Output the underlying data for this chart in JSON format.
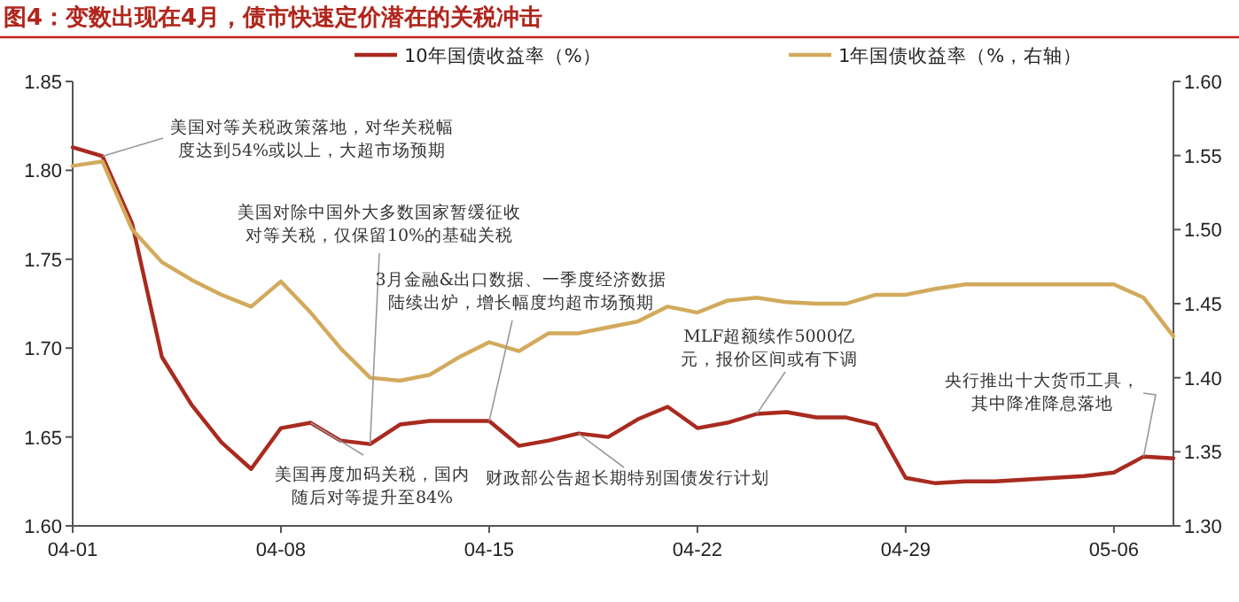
{
  "chart_data": {
    "type": "line",
    "title": "图4：变数出现在4月，债市快速定价潜在的关税冲击",
    "x": [
      "--04-01",
      "--04-02",
      "--04-03",
      "--04-04",
      "--04-05",
      "--04-06",
      "--04-07",
      "--04-08",
      "--04-09",
      "--04-10",
      "--04-11",
      "--04-12",
      "--04-13",
      "--04-14",
      "--04-15",
      "--04-16",
      "--04-17",
      "--04-18",
      "--04-19",
      "--04-20",
      "--04-21",
      "--04-22",
      "--04-23",
      "--04-24",
      "--04-25",
      "--04-26",
      "--04-27",
      "--04-28",
      "--04-29",
      "--04-30",
      "--05-01",
      "--05-02",
      "--05-03",
      "--05-04",
      "--05-05",
      "--05-06",
      "--05-07",
      "--05-08"
    ],
    "series": [
      {
        "name": "10年国债收益率（%）",
        "color": "#a92a1f",
        "values": [
          1.813,
          1.808,
          1.77,
          1.695,
          1.668,
          1.647,
          1.632,
          1.655,
          1.658,
          1.648,
          1.646,
          1.657,
          1.659,
          1.659,
          1.659,
          1.645,
          1.648,
          1.652,
          1.65,
          1.66,
          1.667,
          1.655,
          1.658,
          1.663,
          1.664,
          1.661,
          1.661,
          1.657,
          1.627,
          1.624,
          1.625,
          1.625,
          1.626,
          1.627,
          1.628,
          1.63,
          1.639,
          1.638
        ]
      },
      {
        "name": "1年国债收益率（%，右轴）",
        "color": "#d2aa5c",
        "axis": "y2",
        "values": [
          1.543,
          1.546,
          1.5,
          1.478,
          1.466,
          1.456,
          1.448,
          1.465,
          1.444,
          1.42,
          1.4,
          1.398,
          1.402,
          1.414,
          1.424,
          1.418,
          1.43,
          1.43,
          1.434,
          1.438,
          1.448,
          1.444,
          1.452,
          1.454,
          1.451,
          1.45,
          1.45,
          1.456,
          1.456,
          1.46,
          1.463,
          1.463,
          1.463,
          1.463,
          1.463,
          1.463,
          1.454,
          1.428
        ]
      }
    ],
    "xlim": [
      "--04-01",
      "--05-08"
    ],
    "xticks": [
      {
        "value": "--04-01",
        "label": "04-01"
      },
      {
        "value": "--04-08",
        "label": "04-08"
      },
      {
        "value": "--04-15",
        "label": "04-15"
      },
      {
        "value": "--04-22",
        "label": "04-22"
      },
      {
        "value": "--04-29",
        "label": "04-29"
      },
      {
        "value": "--05-06",
        "label": "05-06"
      }
    ],
    "ylim": [
      1.6,
      1.85
    ],
    "yticks": [
      {
        "value": 1.6,
        "label": "1.60"
      },
      {
        "value": 1.65,
        "label": "1.65"
      },
      {
        "value": 1.7,
        "label": "1.70"
      },
      {
        "value": 1.75,
        "label": "1.75"
      },
      {
        "value": 1.8,
        "label": "1.80"
      },
      {
        "value": 1.85,
        "label": "1.85"
      }
    ],
    "y2lim": [
      1.3,
      1.6
    ],
    "y2ticks": [
      {
        "value": 1.3,
        "label": "1.30"
      },
      {
        "value": 1.35,
        "label": "1.35"
      },
      {
        "value": 1.4,
        "label": "1.40"
      },
      {
        "value": 1.45,
        "label": "1.45"
      },
      {
        "value": 1.5,
        "label": "1.50"
      },
      {
        "value": 1.55,
        "label": "1.55"
      },
      {
        "value": 1.6,
        "label": "1.60"
      }
    ],
    "legend": "top",
    "grid": false,
    "annotations": [
      {
        "text": "美国对等关税政策落地，对华关税幅度达到54%或以上，大超市场预期",
        "x": "--04-02",
        "y": 1.808
      },
      {
        "text": "美国对除中国外大多数国家暂缓征收对等关税，仅保留10%的基础关税",
        "x": "--04-11",
        "y": 1.646
      },
      {
        "text": "3月金融&出口数据、一季度经济数据陆续出炉，增长幅度均超市场预期",
        "x": "--04-15",
        "y": 1.659
      },
      {
        "text": "美国再度加码关税，国内随后对等提升至84%",
        "x": "--04-09",
        "y": 1.658
      },
      {
        "text": "财政部公告超长期特别国债发行计划",
        "x": "--04-18",
        "y": 1.652
      },
      {
        "text": "MLF超额续作5000亿元，报价区间或有下调",
        "x": "--04-24",
        "y": 1.663
      },
      {
        "text": "央行推出十大货币工具，其中降准降息落地",
        "x": "--05-07",
        "y": 1.639
      }
    ]
  }
}
